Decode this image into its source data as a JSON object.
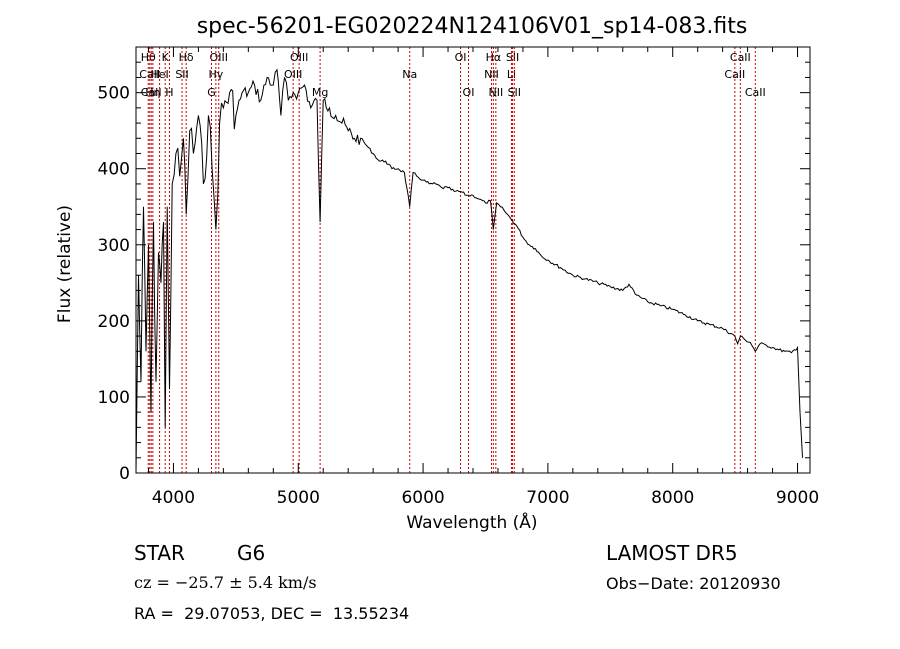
{
  "chart_data": {
    "type": "line",
    "title": "spec-56201-EG020224N124106V01_sp14-083.fits",
    "xlabel": "Wavelength (Å)",
    "ylabel": "Flux (relative)",
    "xlim": [
      3700,
      9100
    ],
    "ylim": [
      0,
      560
    ],
    "xticks": [
      4000,
      5000,
      6000,
      7000,
      8000,
      9000
    ],
    "yticks": [
      0,
      100,
      200,
      300,
      400,
      500
    ],
    "grid": false,
    "legend": "none",
    "line_color": "#000000",
    "marker_color": "#cc0000",
    "series": [
      {
        "x": [
          3700,
          3720,
          3740,
          3760,
          3780,
          3800,
          3820,
          3840,
          3860,
          3880,
          3900,
          3920,
          3934,
          3950,
          3968,
          3990,
          4020,
          4050,
          4080,
          4102,
          4130,
          4160,
          4200,
          4240,
          4280,
          4310,
          4340,
          4370,
          4400,
          4450,
          4500,
          4550,
          4600,
          4650,
          4700,
          4750,
          4800,
          4830,
          4861,
          4890,
          4920,
          4960,
          5000,
          5050,
          5100,
          5150,
          5175,
          5200,
          5250,
          5300,
          5350,
          5400,
          5450,
          5500,
          5550,
          5600,
          5650,
          5700,
          5750,
          5800,
          5850,
          5893,
          5920,
          5950,
          6000,
          6050,
          6100,
          6150,
          6200,
          6250,
          6300,
          6350,
          6400,
          6450,
          6500,
          6540,
          6563,
          6590,
          6620,
          6650,
          6700,
          6750,
          6800,
          6850,
          6900,
          6950,
          7000,
          7100,
          7200,
          7300,
          7400,
          7500,
          7600,
          7650,
          7700,
          7800,
          7900,
          8000,
          8100,
          8200,
          8300,
          8400,
          8498,
          8520,
          8542,
          8580,
          8620,
          8662,
          8700,
          8750,
          8800,
          8850,
          8900,
          8950,
          9000,
          9020,
          9040
        ],
        "y": [
          0,
          260,
          120,
          350,
          160,
          300,
          80,
          330,
          120,
          290,
          250,
          330,
          60,
          350,
          110,
          380,
          420,
          390,
          440,
          340,
          450,
          420,
          470,
          380,
          470,
          400,
          320,
          460,
          480,
          500,
          470,
          500,
          500,
          510,
          490,
          520,
          510,
          530,
          470,
          520,
          490,
          500,
          500,
          510,
          480,
          490,
          330,
          490,
          480,
          470,
          460,
          450,
          440,
          440,
          430,
          420,
          410,
          410,
          400,
          400,
          395,
          350,
          395,
          390,
          385,
          380,
          380,
          375,
          375,
          370,
          370,
          365,
          365,
          360,
          355,
          358,
          320,
          355,
          350,
          345,
          335,
          325,
          310,
          300,
          295,
          285,
          280,
          270,
          260,
          255,
          250,
          245,
          240,
          248,
          235,
          225,
          220,
          215,
          208,
          200,
          195,
          190,
          180,
          170,
          180,
          175,
          172,
          160,
          170,
          168,
          165,
          162,
          160,
          158,
          165,
          80,
          20
        ]
      }
    ],
    "lines": [
      {
        "label": "Hθ",
        "x": 3798,
        "row": 1
      },
      {
        "label": "CaII",
        "x": 3810,
        "row": 2
      },
      {
        "label": "CaII",
        "x": 3822,
        "row": 3
      },
      {
        "label": "Hη",
        "x": 3835,
        "row": 3
      },
      {
        "label": "K",
        "x": 3934,
        "row": 1
      },
      {
        "label": "HeI",
        "x": 3889,
        "row": 2
      },
      {
        "label": "H",
        "x": 3968,
        "row": 3
      },
      {
        "label": "Hδ",
        "x": 4102,
        "row": 1
      },
      {
        "label": "SII",
        "x": 4069,
        "row": 2
      },
      {
        "label": "OIII",
        "x": 4363,
        "row": 1
      },
      {
        "label": "Hγ",
        "x": 4340,
        "row": 2
      },
      {
        "label": "G",
        "x": 4305,
        "row": 3
      },
      {
        "label": "OIII",
        "x": 5007,
        "row": 1
      },
      {
        "label": "OIII",
        "x": 4959,
        "row": 2
      },
      {
        "label": "Mg",
        "x": 5175,
        "row": 3
      },
      {
        "label": "Na",
        "x": 5893,
        "row": 2
      },
      {
        "label": "OI",
        "x": 6300,
        "row": 1
      },
      {
        "label": "OI",
        "x": 6364,
        "row": 3
      },
      {
        "label": "Hα",
        "x": 6563,
        "row": 1
      },
      {
        "label": "NII",
        "x": 6548,
        "row": 2
      },
      {
        "label": "NII",
        "x": 6583,
        "row": 3
      },
      {
        "label": "SII",
        "x": 6717,
        "row": 1
      },
      {
        "label": "Li",
        "x": 6708,
        "row": 2
      },
      {
        "label": "SII",
        "x": 6731,
        "row": 3
      },
      {
        "label": "CaII",
        "x": 8542,
        "row": 1
      },
      {
        "label": "CaII",
        "x": 8498,
        "row": 2
      },
      {
        "label": "CaII",
        "x": 8662,
        "row": 3
      }
    ]
  },
  "info": {
    "object_class": "STAR",
    "subclass": "G6",
    "survey": "LAMOST DR5",
    "cz": "cz = −25.7 ± 5.4 km/s",
    "obs_date": "Obs−Date: 20120930",
    "coords": "RA =  29.07053, DEC =  13.55234"
  }
}
